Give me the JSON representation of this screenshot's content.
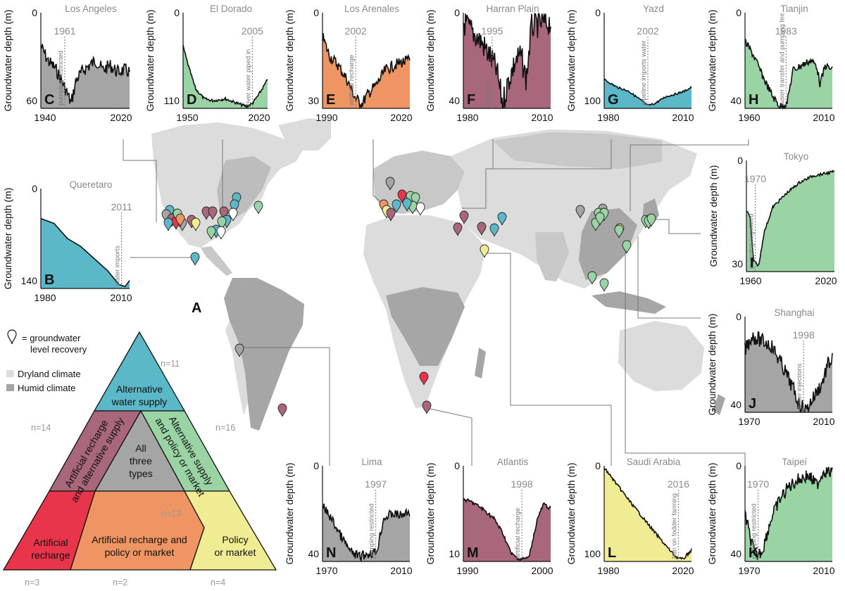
{
  "figure_letter": "A",
  "colors": {
    "artificial_recharge": "#e8354b",
    "alt_supply": "#5bb8c9",
    "policy": "#f0ec94",
    "recharge_and_policy": "#ef9563",
    "recharge_and_alt": "#a8677a",
    "alt_and_policy": "#9bd4a4",
    "all_three": "#a5a5a5",
    "dryland": "#dcdcdc",
    "humid": "#a6a6a6"
  },
  "legend": {
    "marker_label_line1": "= groundwater",
    "marker_label_line2": "level recovery",
    "dryland": "Dryland climate",
    "humid": "Humid climate"
  },
  "triangle": {
    "alt_supply": [
      "Alternative",
      "water supply"
    ],
    "recharge_alt": [
      "Artificial recharge",
      "and alternative supply"
    ],
    "alt_policy": [
      "Alternative supply",
      "and policy or market"
    ],
    "all_three": [
      "All",
      "three",
      "types"
    ],
    "artificial": [
      "Artificial",
      "recharge"
    ],
    "recharge_policy": [
      "Artificial recharge and",
      "policy or market"
    ],
    "policy": [
      "Policy",
      "or market"
    ],
    "counts": {
      "alt_supply": "n=11",
      "recharge_alt": "n=14",
      "alt_policy": "n=16",
      "all_three": "n=13",
      "artificial": "n=3",
      "recharge_policy": "n=2",
      "policy": "n=4"
    }
  },
  "ylabel": "Groundwater depth (m)",
  "panels": [
    {
      "letter": "B",
      "city": "Queretaro",
      "type": "alt_supply",
      "y_ticks": [
        "0",
        "140"
      ],
      "x_ticks": [
        "1980",
        "2010"
      ],
      "event_year": "2011",
      "event": "water imports"
    },
    {
      "letter": "C",
      "city": "Los Angeles",
      "type": "all_three",
      "y_ticks": [
        "0",
        "60"
      ],
      "x_ticks": [
        "1940",
        "2020"
      ],
      "event_year": "1961",
      "event": "pumping restricted"
    },
    {
      "letter": "D",
      "city": "El Dorado",
      "type": "alt_and_policy",
      "y_ticks": [
        "0",
        "110"
      ],
      "x_ticks": [
        "1950",
        "2020"
      ],
      "event_year": "2005",
      "event": "river water piped in"
    },
    {
      "letter": "E",
      "city": "Los Arenales",
      "type": "recharge_and_policy",
      "y_ticks": [
        "0",
        "30"
      ],
      "x_ticks": [
        "1990",
        "2020"
      ],
      "event_year": "2002",
      "event": "artificial recharge"
    },
    {
      "letter": "F",
      "city": "Harran Plain",
      "type": "recharge_and_alt",
      "y_ticks": [
        "0",
        "40"
      ],
      "x_ticks": [
        "1980",
        "2010"
      ],
      "event_year": "1995",
      "event": "irrigation"
    },
    {
      "letter": "G",
      "city": "Yazd",
      "type": "alt_supply",
      "y_ticks": [
        "0",
        "100"
      ],
      "x_ticks": [
        "1980",
        "2010"
      ],
      "event_year": "2002",
      "event": "pipeline imports water"
    },
    {
      "letter": "H",
      "city": "Tianjin",
      "type": "alt_and_policy",
      "y_ticks": [
        "0",
        "40"
      ],
      "x_ticks": [
        "1960",
        "2010"
      ],
      "event_year": "1983",
      "event": "water transfer and pumping fee"
    },
    {
      "letter": "I",
      "city": "Tokyo",
      "type": "alt_and_policy",
      "y_ticks": [
        "0",
        "30"
      ],
      "x_ticks": [
        "1960",
        "2020"
      ],
      "event_year": "1970",
      "event": "pumping regulated"
    },
    {
      "letter": "J",
      "city": "Shanghai",
      "type": "all_three",
      "y_ticks": [
        "0",
        "40"
      ],
      "x_ticks": [
        "1970",
        "2010"
      ],
      "event_year": "1998",
      "event": "water injections"
    },
    {
      "letter": "K",
      "city": "Taipei",
      "type": "alt_and_policy",
      "y_ticks": [
        "0",
        "40"
      ],
      "x_ticks": [
        "1970",
        "2010"
      ],
      "event_year": "1970",
      "event": "pumping restricted"
    },
    {
      "letter": "L",
      "city": "Saudi Arabia",
      "type": "policy",
      "y_ticks": [
        "0",
        "100"
      ],
      "x_ticks": [
        "1980",
        "2020"
      ],
      "event_year": "2016",
      "event": "ban on fodder farming"
    },
    {
      "letter": "M",
      "city": "Atlantis",
      "type": "recharge_and_alt",
      "y_ticks": [
        "0",
        "10"
      ],
      "x_ticks": [
        "1990",
        "2000"
      ],
      "event_year": "1998",
      "event": "artificial recharge"
    },
    {
      "letter": "N",
      "city": "Lima",
      "type": "all_three",
      "y_ticks": [
        "0",
        "40"
      ],
      "x_ticks": [
        "1970",
        "2010"
      ],
      "event_year": "1997",
      "event": "pumping restricted"
    }
  ]
}
